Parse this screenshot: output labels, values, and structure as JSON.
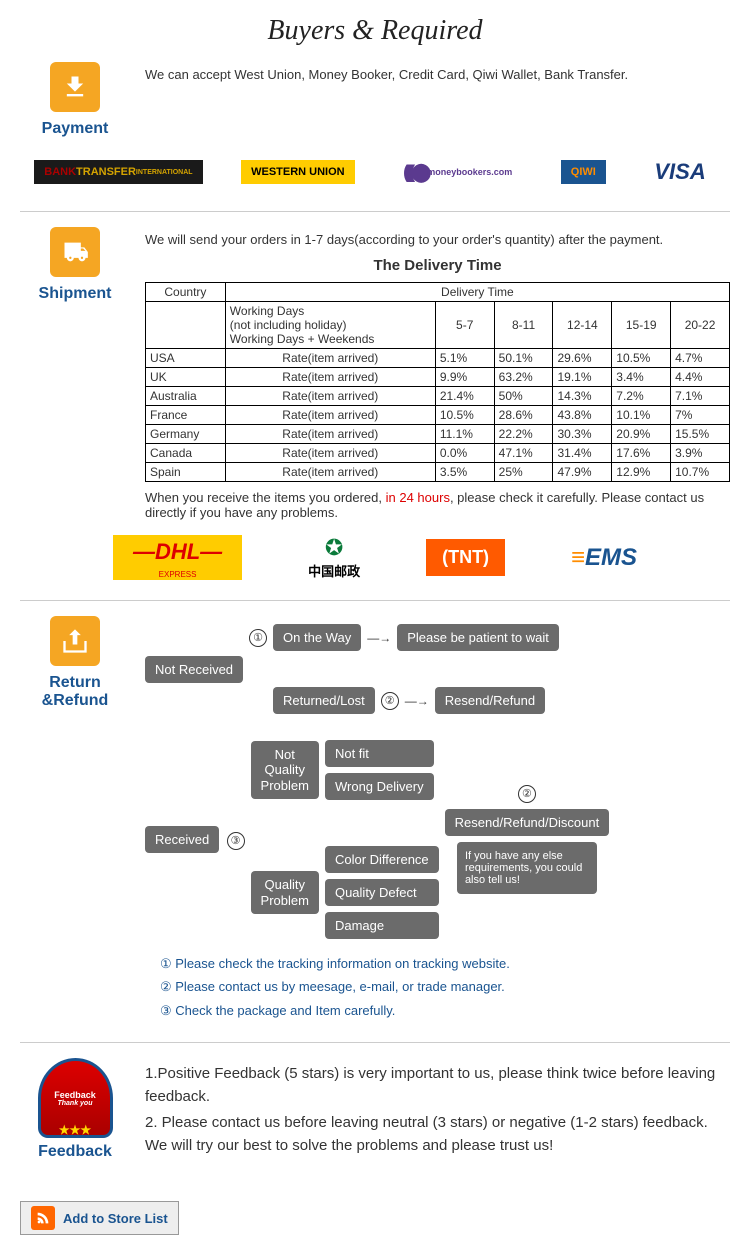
{
  "header": {
    "title": "Buyers & Required"
  },
  "payment": {
    "label": "Payment",
    "text": "We can accept West Union, Money Booker, Credit Card, Qiwi Wallet, Bank Transfer.",
    "logos": [
      {
        "name": "BANK TRANSFER",
        "sub": "INTERNATIONAL",
        "bg": "#1a1a1a",
        "fg": "#d4a300",
        "accent": "#a00"
      },
      {
        "name": "WESTERN UNION",
        "bg": "#ffcc00",
        "fg": "#000"
      },
      {
        "name": "moneybookers.com",
        "bg": "#fff",
        "fg": "#5b3a8f"
      },
      {
        "name": "QIWI",
        "bg": "#1a5490",
        "fg": "#ff8c00"
      },
      {
        "name": "VISA",
        "bg": "#fff",
        "fg": "#1a3c7a"
      }
    ]
  },
  "shipment": {
    "label": "Shipment",
    "intro": "We will send your orders in 1-7 days(according to your order's quantity) after the payment.",
    "table_title": "The Delivery Time",
    "columns": [
      "Country",
      "Delivery Time"
    ],
    "header_row": [
      "",
      "Working Days\n(not including holiday)\nWorking Days + Weekends",
      "5-7",
      "8-11",
      "12-14",
      "15-19",
      "20-22"
    ],
    "rate_label": "Rate(item arrived)",
    "rows": [
      {
        "country": "USA",
        "values": [
          "5.1%",
          "50.1%",
          "29.6%",
          "10.5%",
          "4.7%"
        ]
      },
      {
        "country": "UK",
        "values": [
          "9.9%",
          "63.2%",
          "19.1%",
          "3.4%",
          "4.4%"
        ]
      },
      {
        "country": "Australia",
        "values": [
          "21.4%",
          "50%",
          "14.3%",
          "7.2%",
          "7.1%"
        ]
      },
      {
        "country": "France",
        "values": [
          "10.5%",
          "28.6%",
          "43.8%",
          "10.1%",
          "7%"
        ]
      },
      {
        "country": "Germany",
        "values": [
          "11.1%",
          "22.2%",
          "30.3%",
          "20.9%",
          "15.5%"
        ]
      },
      {
        "country": "Canada",
        "values": [
          "0.0%",
          "47.1%",
          "31.4%",
          "17.6%",
          "3.9%"
        ]
      },
      {
        "country": "Spain",
        "values": [
          "3.5%",
          "25%",
          "47.9%",
          "12.9%",
          "10.7%"
        ]
      }
    ],
    "note_prefix": "When you receive the items you ordered, ",
    "note_red": "in 24 hours",
    "note_suffix": ", please check it carefully. Please contact us directly if you have any problems.",
    "carriers": [
      {
        "name": "DHL",
        "sub": "EXPRESS",
        "bg": "#ffcc00",
        "fg": "#d00"
      },
      {
        "name": "中国邮政",
        "bg": "#fff",
        "fg": "#0a7a3a"
      },
      {
        "name": "TNT",
        "bg": "#ff5a00",
        "fg": "#fff"
      },
      {
        "name": "EMS",
        "bg": "#fff",
        "fg": "#1a5490",
        "accent": "#ff8c00"
      }
    ]
  },
  "return": {
    "label": "Return &Refund",
    "flow": {
      "not_received": "Not Received",
      "received": "Received",
      "on_the_way": "On the Way",
      "returned_lost": "Returned/Lost",
      "please_wait": "Please be patient to wait",
      "resend_refund": "Resend/Refund",
      "not_quality": "Not\nQuality\nProblem",
      "quality": "Quality\nProblem",
      "not_fit": "Not fit",
      "wrong_delivery": "Wrong Delivery",
      "color_diff": "Color Difference",
      "quality_defect": "Quality Defect",
      "damage": "Damage",
      "resend_discount": "Resend/Refund/Discount",
      "callout": "If you have any else requirements, you could also tell us!"
    },
    "steps": [
      "① Please check the tracking information on tracking website.",
      "② Please contact us by meesage, e-mail, or trade manager.",
      "③ Check the package and Item carefully."
    ]
  },
  "feedback": {
    "label": "Feedback",
    "badge_top": "Feedback",
    "badge_sub": "Thank you",
    "lines": [
      "1.Positive Feedback (5 stars) is very important to us, please think twice before leaving feedback.",
      "2. Please contact us before leaving neutral (3 stars) or negative (1-2 stars) feedback. We will try our best to solve the problems and please trust us!"
    ]
  },
  "store_button": "Add to Store List"
}
